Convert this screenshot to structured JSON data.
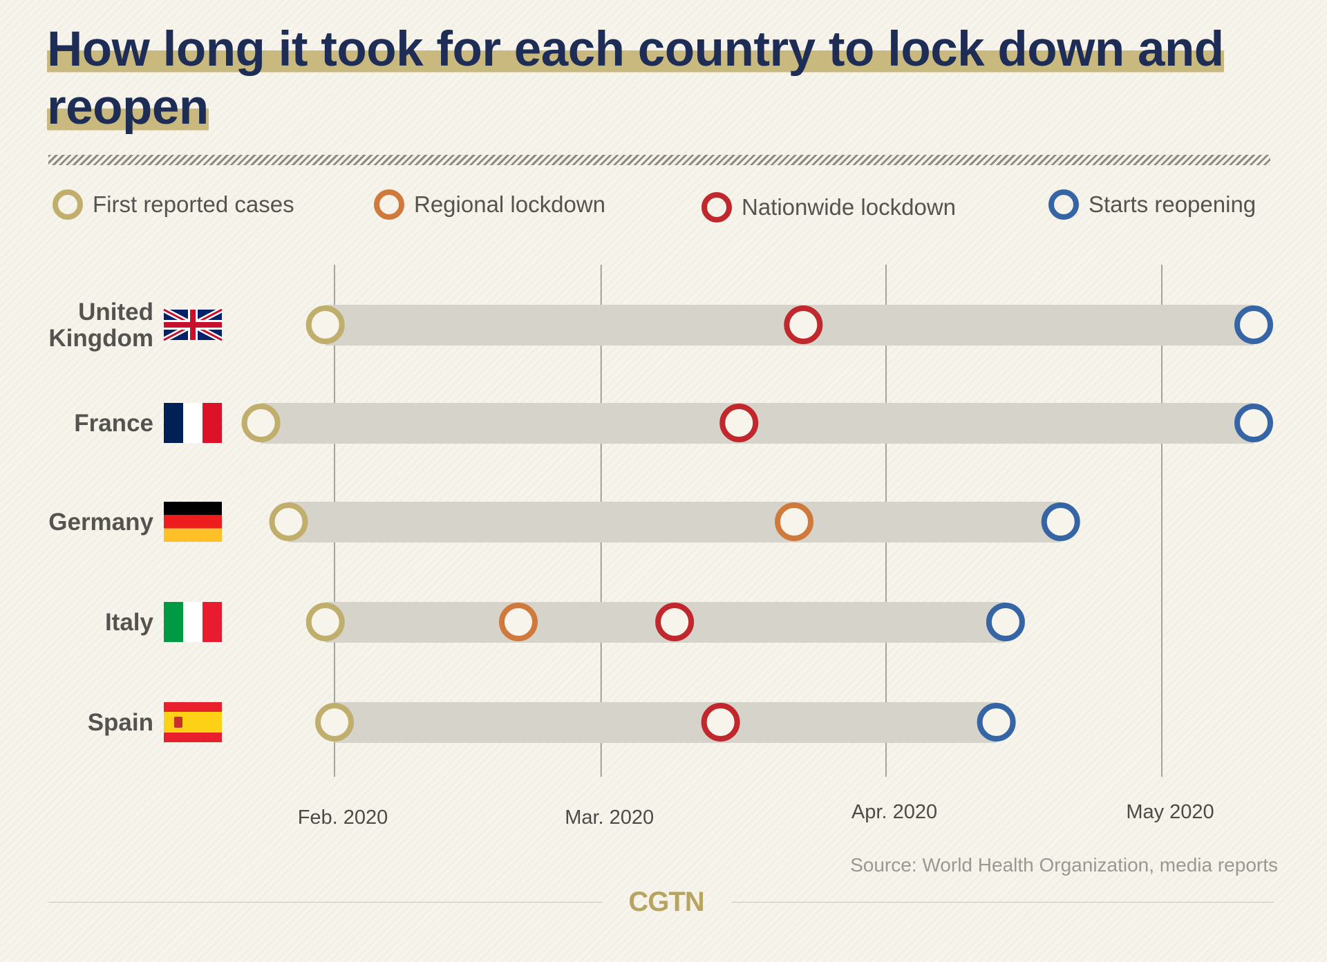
{
  "title": "How long it took for each country to lock down and reopen",
  "legend": [
    {
      "label": "First reported cases",
      "color": "#bfae6c"
    },
    {
      "label": "Regional lockdown",
      "color": "#cf7a3c"
    },
    {
      "label": "Nationwide lockdown",
      "color": "#c0282d"
    },
    {
      "label": "Starts reopening",
      "color": "#3565a5"
    }
  ],
  "source": "Source: World Health Organization, media reports",
  "logo": "CGTN",
  "chart_data": {
    "type": "scatter",
    "title": "How long it took for each country to lock down and reopen",
    "x_type": "date",
    "xlim": [
      "2020-01-22",
      "2020-05-13"
    ],
    "grid": "vertical lines at month starts",
    "legend_position": "top",
    "x_ticks": [
      {
        "label": "Feb. 2020",
        "date": "2020-02-01"
      },
      {
        "label": "Mar. 2020",
        "date": "2020-03-01"
      },
      {
        "label": "Apr. 2020",
        "date": "2020-04-01"
      },
      {
        "label": "May 2020",
        "date": "2020-05-01"
      }
    ],
    "series_names": [
      "First reported cases",
      "Regional lockdown",
      "Nationwide lockdown",
      "Starts reopening"
    ],
    "countries": [
      {
        "name_lines": [
          "United",
          "Kingdom"
        ],
        "flag": "uk-flag",
        "events": [
          {
            "series": 0,
            "date": "2020-01-31"
          },
          {
            "series": 2,
            "date": "2020-03-23"
          },
          {
            "series": 3,
            "date": "2020-05-11"
          }
        ]
      },
      {
        "name_lines": [
          "France"
        ],
        "flag": "france-flag",
        "events": [
          {
            "series": 0,
            "date": "2020-01-24"
          },
          {
            "series": 2,
            "date": "2020-03-16"
          },
          {
            "series": 3,
            "date": "2020-05-11"
          }
        ]
      },
      {
        "name_lines": [
          "Germany"
        ],
        "flag": "germany-flag",
        "events": [
          {
            "series": 0,
            "date": "2020-01-27"
          },
          {
            "series": 1,
            "date": "2020-03-22"
          },
          {
            "series": 3,
            "date": "2020-04-20"
          }
        ]
      },
      {
        "name_lines": [
          "Italy"
        ],
        "flag": "italy-flag",
        "events": [
          {
            "series": 0,
            "date": "2020-01-31"
          },
          {
            "series": 1,
            "date": "2020-02-21"
          },
          {
            "series": 2,
            "date": "2020-03-09"
          },
          {
            "series": 3,
            "date": "2020-04-14"
          }
        ]
      },
      {
        "name_lines": [
          "Spain"
        ],
        "flag": "spain-flag",
        "events": [
          {
            "series": 0,
            "date": "2020-02-01"
          },
          {
            "series": 2,
            "date": "2020-03-14"
          },
          {
            "series": 3,
            "date": "2020-04-13"
          }
        ]
      }
    ]
  }
}
